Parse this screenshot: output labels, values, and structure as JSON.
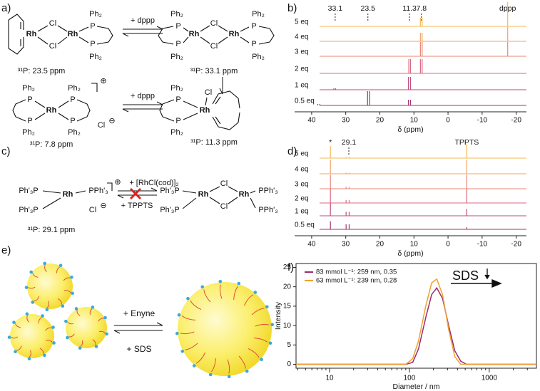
{
  "panel_labels": [
    "a)",
    "b)",
    "c)",
    "d)",
    "e)",
    "f)"
  ],
  "scheme_a": {
    "mol1": {
      "atoms": [
        "Rh",
        "Cl",
        "Rh",
        "Cl",
        "P",
        "P",
        "Ph₂",
        "Ph₂"
      ],
      "shift": "³¹P: 23.5 ppm"
    },
    "mol2": {
      "atoms": [
        "Ph₂",
        "P",
        "P",
        "Ph₂",
        "Rh",
        "Cl",
        "Cl",
        "Rh",
        "Ph₂",
        "P",
        "P",
        "Ph₂"
      ],
      "shift": "³¹P: 33.1 ppm"
    },
    "mol3": {
      "atoms": [
        "Ph₂",
        "P",
        "P",
        "Ph₂",
        "Rh",
        "Ph₂",
        "P",
        "P",
        "Ph₂",
        "Cl"
      ],
      "charges": [
        "⊕",
        "⊖"
      ],
      "shift": "³¹P: 7.8 ppm"
    },
    "mol4": {
      "atoms": [
        "Ph₂",
        "P",
        "P",
        "Ph₂",
        "Rh",
        "Cl"
      ],
      "shift": "³¹P: 11.3 ppm"
    },
    "reagents": [
      "+ dppp",
      "+ dppp"
    ]
  },
  "scheme_c": {
    "mol5": {
      "atoms": [
        "Ph'₃P",
        "Rh",
        "PPh'₃",
        "Ph'₃P",
        "Cl"
      ],
      "charges": [
        "⊕",
        "⊖"
      ],
      "shift": "³¹P: 29.1 ppm"
    },
    "mol6": {
      "atoms": [
        "Ph'₃P",
        "Rh",
        "Cl",
        "Cl",
        "Rh",
        "PPh'₃",
        "Ph'₃P",
        "PPh'₃"
      ]
    },
    "reagents": [
      "+ [RhCl(cod)]₂",
      "+ TPPTS"
    ]
  },
  "scheme_e": {
    "reagents": [
      "+ Enyne",
      "+ SDS"
    ]
  },
  "chart_data": [
    {
      "type": "nmr_stack",
      "xlabel": "δ (ppm)",
      "xlim": [
        45,
        -23
      ],
      "xticks": [
        40,
        30,
        20,
        10,
        0,
        -10,
        -20
      ],
      "annotations": [
        {
          "text": "33.1",
          "x": 33.1,
          "dotted": true
        },
        {
          "text": "23.5",
          "x": 23.5,
          "dotted": true
        },
        {
          "text": "11.3",
          "x": 11.3,
          "dotted": true
        },
        {
          "text": "7.8",
          "x": 7.8,
          "dotted": true
        },
        {
          "text": "dppp",
          "x": -17.5,
          "dotted": false
        }
      ],
      "series": [
        {
          "name": "0.5 eq",
          "color": "#a3336f",
          "peaks": [
            38.2,
            37.6,
            23.6,
            23.0,
            11.6,
            11.0
          ],
          "heights": [
            0.1,
            0.1,
            1.0,
            1.0,
            0.4,
            0.4
          ]
        },
        {
          "name": "1 eq",
          "color": "#c04a7d",
          "peaks": [
            33.5,
            33.0,
            11.6,
            11.0
          ],
          "heights": [
            0.1,
            0.1,
            0.9,
            0.9
          ]
        },
        {
          "name": "2 eq",
          "color": "#d9687f",
          "peaks": [
            11.5,
            11.0,
            8.1,
            7.6
          ],
          "heights": [
            1.0,
            1.0,
            1.0,
            1.0
          ]
        },
        {
          "name": "3 eq",
          "color": "#ea8674",
          "peaks": [
            8.1,
            7.6,
            -17.5
          ],
          "heights": [
            1.0,
            1.0,
            1.0
          ]
        },
        {
          "name": "4 eq",
          "color": "#f3a361",
          "peaks": [
            8.1,
            7.6,
            -17.5
          ],
          "heights": [
            0.6,
            0.6,
            1.0
          ]
        },
        {
          "name": "5 eq",
          "color": "#f6b84f",
          "peaks": [
            8.1,
            7.6,
            -17.5
          ],
          "heights": [
            0.6,
            0.6,
            1.7
          ]
        }
      ]
    },
    {
      "type": "nmr_stack",
      "xlabel": "δ (ppm)",
      "xlim": [
        45,
        -23
      ],
      "xticks": [
        40,
        30,
        20,
        10,
        0,
        -10,
        -20
      ],
      "annotations": [
        {
          "text": "*",
          "x": 34.5,
          "dotted": false
        },
        {
          "text": "29.1",
          "x": 29.1,
          "dotted": true
        },
        {
          "text": "TPPTS",
          "x": -5.5,
          "dotted": false
        }
      ],
      "series": [
        {
          "name": "0.5 eq",
          "color": "#a3336f",
          "peaks": [
            34.5,
            29.9,
            29.0,
            -5.5
          ],
          "heights": [
            0.8,
            0.5,
            0.5,
            0.2
          ]
        },
        {
          "name": "1 eq",
          "color": "#c04a7d",
          "peaks": [
            34.5,
            29.9,
            29.0,
            -5.5
          ],
          "heights": [
            1.3,
            0.4,
            0.4,
            0.7
          ]
        },
        {
          "name": "2 eq",
          "color": "#d9687f",
          "peaks": [
            34.5,
            29.9,
            29.0,
            -5.5
          ],
          "heights": [
            1.4,
            0.3,
            0.3,
            1.4
          ]
        },
        {
          "name": "3 eq",
          "color": "#ea8674",
          "peaks": [
            34.5,
            29.9,
            29.0,
            -5.5
          ],
          "heights": [
            1.4,
            0.2,
            0.2,
            1.4
          ]
        },
        {
          "name": "4 eq",
          "color": "#f3a361",
          "peaks": [
            34.5,
            29.9,
            29.0,
            -5.5
          ],
          "heights": [
            1.4,
            0.1,
            0.1,
            1.4
          ]
        },
        {
          "name": "5 eq",
          "color": "#f6b84f",
          "peaks": [
            34.5,
            29.9,
            29.0,
            -5.5
          ],
          "heights": [
            1.2,
            0.1,
            0.1,
            1.4
          ]
        }
      ]
    },
    {
      "type": "line",
      "xlabel": "Diameter / nm",
      "ylabel": "Intensity",
      "xscale": "log",
      "xlim": [
        3.8,
        3900
      ],
      "xticks": [
        10,
        100,
        1000
      ],
      "ylim": [
        -1,
        26
      ],
      "yticks": [
        0,
        5,
        10,
        15,
        20,
        25
      ],
      "legend": "upper left",
      "annotation": "SDS",
      "x": [
        3.8,
        90,
        110,
        130,
        160,
        190,
        220,
        260,
        310,
        370,
        440,
        520,
        600,
        3900
      ],
      "series": [
        {
          "name": "83 mmol L⁻¹: 259 nm, 0.35",
          "color": "#9b2d6b",
          "values": [
            0,
            0,
            0.5,
            4,
            12,
            18,
            19.7,
            17,
            10,
            3.5,
            0.8,
            0,
            0,
            0
          ]
        },
        {
          "name": "63 mmol L⁻¹: 239 nm, 0.28",
          "color": "#f0a030",
          "values": [
            0,
            0,
            1.5,
            6,
            15,
            21,
            22,
            18,
            9,
            2,
            0,
            0,
            0,
            0
          ]
        }
      ]
    }
  ]
}
